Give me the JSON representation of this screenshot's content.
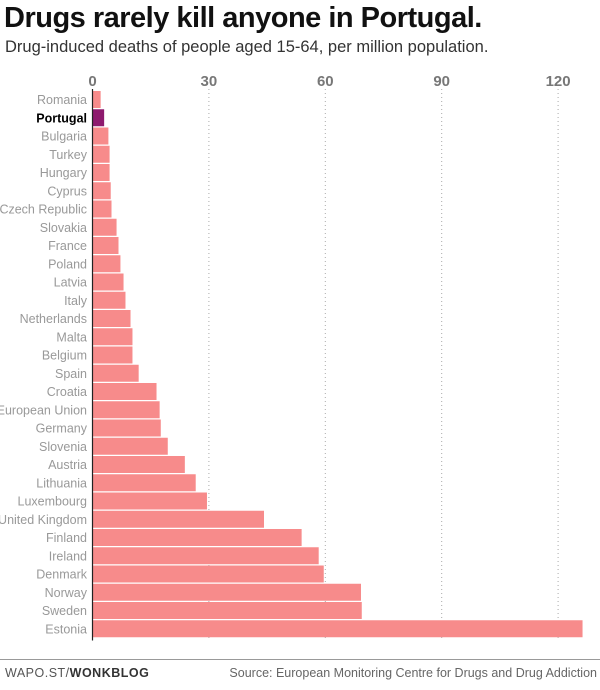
{
  "chart_data": {
    "type": "bar",
    "orientation": "horizontal",
    "title": "Drugs rarely kill anyone in Portugal.",
    "subtitle": "Drug-induced deaths of people aged 15-64, per million population.",
    "xlim": [
      0,
      130
    ],
    "xticks": [
      0,
      30,
      60,
      90,
      120
    ],
    "grid": true,
    "categories": [
      "Romania",
      "Portugal",
      "Bulgaria",
      "Turkey",
      "Hungary",
      "Cyprus",
      "Czech Republic",
      "Slovakia",
      "France",
      "Poland",
      "Latvia",
      "Italy",
      "Netherlands",
      "Malta",
      "Belgium",
      "Spain",
      "Croatia",
      "European Union",
      "Germany",
      "Slovenia",
      "Austria",
      "Lithuania",
      "Luxembourg",
      "United Kingdom",
      "Finland",
      "Ireland",
      "Denmark",
      "Norway",
      "Sweden",
      "Estonia"
    ],
    "values": [
      2.1,
      3,
      4.1,
      4.4,
      4.4,
      4.7,
      4.9,
      6.2,
      6.7,
      7.2,
      8,
      8.5,
      9.8,
      10.3,
      10.3,
      11.9,
      16.5,
      17.3,
      17.6,
      19.4,
      23.8,
      26.6,
      29.5,
      44.2,
      53.9,
      58.3,
      59.6,
      69.2,
      69.4,
      126.3
    ],
    "highlight": "Portugal",
    "colors": {
      "bar": "#f78b8b",
      "highlight": "#8e1a6e",
      "grid": "#aaaaaa"
    }
  },
  "footer": {
    "credit_prefix": "WAPO.ST/",
    "credit_bold": "WONKBLOG",
    "source": "Source: European Monitoring Centre for Drugs and Drug Addiction"
  }
}
